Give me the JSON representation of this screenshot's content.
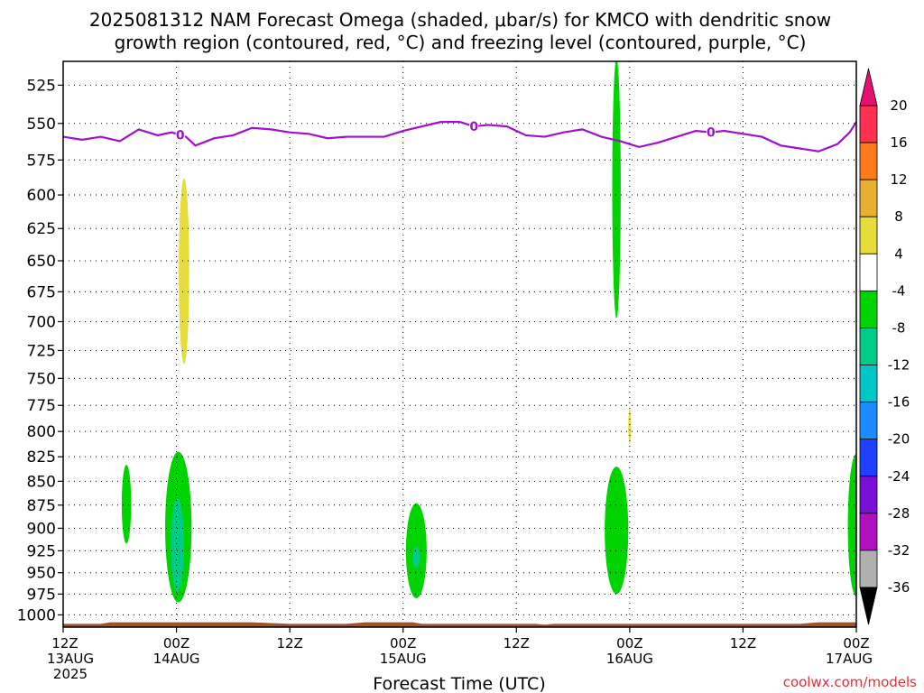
{
  "chart_data": {
    "type": "heatmap",
    "title_lines": [
      "2025081312 NAM Forecast Omega (shaded, μbar/s) for KMCO with dendritic snow",
      "growth region (contoured, red, °C) and freezing level (contoured, purple, °C)"
    ],
    "xlabel": "Forecast Time (UTC)",
    "credit": "coolwx.com/models",
    "x_unit": "hours since 2025-08-13 12Z",
    "xlim": [
      0,
      84
    ],
    "x_ticks": [
      {
        "x": 0,
        "lines": [
          "12Z",
          "13AUG",
          "2025"
        ]
      },
      {
        "x": 12,
        "lines": [
          "00Z",
          "14AUG"
        ]
      },
      {
        "x": 24,
        "lines": [
          "12Z"
        ]
      },
      {
        "x": 36,
        "lines": [
          "00Z",
          "15AUG"
        ]
      },
      {
        "x": 48,
        "lines": [
          "12Z"
        ]
      },
      {
        "x": 60,
        "lines": [
          "00Z",
          "16AUG"
        ]
      },
      {
        "x": 72,
        "lines": [
          "12Z"
        ]
      },
      {
        "x": 84,
        "lines": [
          "00Z",
          "17AUG"
        ]
      }
    ],
    "y_unit": "pressure (hPa)",
    "y_log_scale": true,
    "ylim": [
      1015,
      510
    ],
    "y_ticks": [
      525,
      550,
      575,
      600,
      625,
      650,
      675,
      700,
      725,
      750,
      775,
      800,
      825,
      850,
      875,
      900,
      925,
      950,
      975,
      1000
    ],
    "grid": true,
    "colorbar": {
      "position": "right",
      "labels": [
        "20",
        "16",
        "12",
        "8",
        "4",
        "-4",
        "-8",
        "-12",
        "-16",
        "-20",
        "-24",
        "-28",
        "-32",
        "-36"
      ],
      "colors": [
        "#ff3050",
        "#ff7a1a",
        "#e8b030",
        "#e6dc3a",
        "#ffffff",
        "#00d400",
        "#00cc88",
        "#00c8c8",
        "#1a8cff",
        "#2040ff",
        "#7a10d8",
        "#b010c0",
        "#b0b0b0"
      ],
      "top_arrow_color": "#e8106e",
      "bottom_arrow_color": "#000000"
    },
    "omega_areas": [
      {
        "name": "green",
        "color": "#00d400",
        "x_center": 6.7,
        "x_half_width": 0.5,
        "p_top": 833,
        "p_bottom": 917
      },
      {
        "name": "green",
        "color": "#00d400",
        "x_center": 12.2,
        "x_half_width": 1.4,
        "p_top": 820,
        "p_bottom": 985
      },
      {
        "name": "teal",
        "color": "#00cc88",
        "x_center": 12.1,
        "x_half_width": 0.7,
        "p_top": 868,
        "p_bottom": 972
      },
      {
        "name": "yellow",
        "color": "#e6dc3a",
        "x_center": 12.8,
        "x_half_width": 0.55,
        "p_top": 588,
        "p_bottom": 737
      },
      {
        "name": "green",
        "color": "#00d400",
        "x_center": 37.4,
        "x_half_width": 1.1,
        "p_top": 873,
        "p_bottom": 980
      },
      {
        "name": "teal",
        "color": "#00cc88",
        "x_center": 37.4,
        "x_half_width": 0.35,
        "p_top": 920,
        "p_bottom": 945
      },
      {
        "name": "green",
        "color": "#00d400",
        "x_center": 58.6,
        "x_half_width": 0.45,
        "p_top": 508,
        "p_bottom": 697
      },
      {
        "name": "green",
        "color": "#00d400",
        "x_center": 58.6,
        "x_half_width": 1.25,
        "p_top": 835,
        "p_bottom": 975
      },
      {
        "name": "yellow",
        "color": "#e6dc3a",
        "x_center": 60.0,
        "x_half_width": 0.15,
        "p_top": 778,
        "p_bottom": 812
      },
      {
        "name": "green",
        "color": "#00d400",
        "x_center": 84.0,
        "x_half_width": 0.9,
        "p_top": 822,
        "p_bottom": 978
      }
    ],
    "freezing_level": {
      "color": "#a010d0",
      "label": "0",
      "label_x": [
        12.4,
        43.5,
        68.6
      ],
      "points": [
        [
          0,
          559
        ],
        [
          2,
          561
        ],
        [
          4,
          559
        ],
        [
          6,
          562
        ],
        [
          8,
          554
        ],
        [
          10,
          558
        ],
        [
          11.5,
          556
        ],
        [
          13,
          559
        ],
        [
          14,
          565
        ],
        [
          16,
          560
        ],
        [
          18,
          558
        ],
        [
          20,
          553
        ],
        [
          22,
          554
        ],
        [
          24,
          556
        ],
        [
          26,
          557
        ],
        [
          28,
          560
        ],
        [
          30,
          559
        ],
        [
          32,
          559
        ],
        [
          34,
          559
        ],
        [
          36,
          555
        ],
        [
          38,
          552
        ],
        [
          40,
          549
        ],
        [
          42,
          549
        ],
        [
          43.5,
          552
        ],
        [
          45,
          551
        ],
        [
          47,
          552
        ],
        [
          49,
          558
        ],
        [
          51,
          559
        ],
        [
          53,
          556
        ],
        [
          55,
          554
        ],
        [
          57,
          559
        ],
        [
          59,
          562
        ],
        [
          60,
          564
        ],
        [
          61,
          566
        ],
        [
          63,
          563
        ],
        [
          65,
          559
        ],
        [
          67,
          555
        ],
        [
          68.6,
          556
        ],
        [
          70,
          555
        ],
        [
          72,
          557
        ],
        [
          74,
          559
        ],
        [
          76,
          565
        ],
        [
          78,
          567
        ],
        [
          80,
          569
        ],
        [
          82,
          564
        ],
        [
          83.3,
          556
        ],
        [
          84,
          549
        ]
      ]
    },
    "surface": {
      "color": "#a0522d",
      "points": [
        [
          0,
          1011
        ],
        [
          4,
          1011
        ],
        [
          5,
          1009
        ],
        [
          12,
          1009
        ],
        [
          20,
          1009
        ],
        [
          24,
          1011
        ],
        [
          30,
          1011
        ],
        [
          32,
          1009
        ],
        [
          37,
          1009
        ],
        [
          38,
          1011
        ],
        [
          50,
          1011
        ],
        [
          51,
          1012
        ],
        [
          52,
          1011
        ],
        [
          72,
          1011
        ],
        [
          78,
          1011
        ],
        [
          80,
          1009
        ],
        [
          84,
          1009
        ]
      ]
    }
  }
}
